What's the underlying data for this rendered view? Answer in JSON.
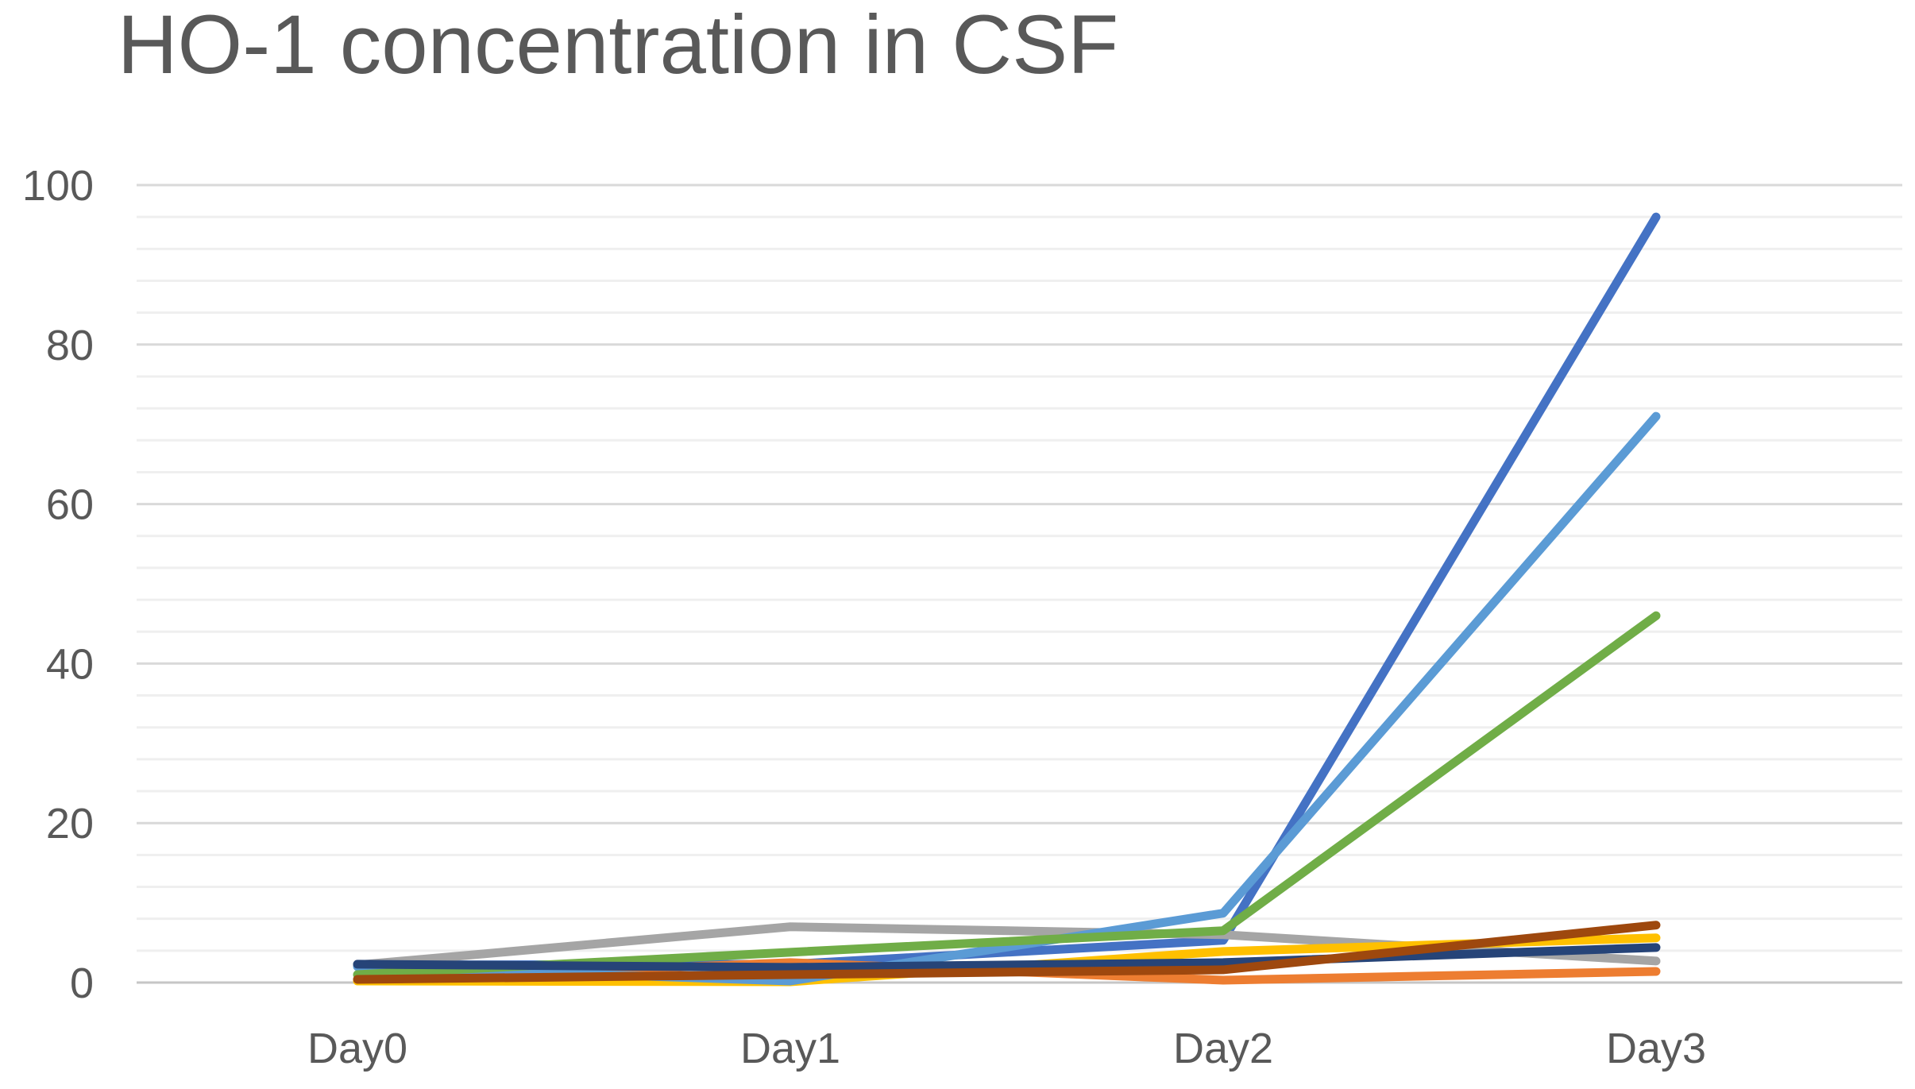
{
  "title": "HO-1 concentration in CSF",
  "chart_data": {
    "type": "line",
    "title": "HO-1 concentration in CSF",
    "categories": [
      "Day0",
      "Day1",
      "Day2",
      "Day3"
    ],
    "series": [
      {
        "name": "blue",
        "color": "#4472C4",
        "values": [
          2.2,
          2.3,
          5.3,
          96
        ]
      },
      {
        "name": "orange",
        "color": "#ED7D31",
        "values": [
          0.3,
          2.5,
          0.3,
          1.4
        ]
      },
      {
        "name": "gray",
        "color": "#A5A5A5",
        "values": [
          2.2,
          7.0,
          6.0,
          2.7
        ]
      },
      {
        "name": "gold",
        "color": "#FFC000",
        "values": [
          0.2,
          0.1,
          3.9,
          5.6
        ]
      },
      {
        "name": "light-blue",
        "color": "#5B9BD5",
        "values": [
          2.0,
          0.2,
          8.7,
          71
        ]
      },
      {
        "name": "green",
        "color": "#70AD47",
        "values": [
          1.0,
          3.8,
          6.5,
          46
        ]
      },
      {
        "name": "dark-blue",
        "color": "#264478",
        "values": [
          2.3,
          1.9,
          2.5,
          4.4
        ]
      },
      {
        "name": "dark-orange",
        "color": "#9E480E",
        "values": [
          0.4,
          1.0,
          1.6,
          7.2
        ]
      }
    ],
    "ylim": [
      0,
      100
    ],
    "yticks": [
      0,
      20,
      40,
      60,
      80,
      100
    ],
    "major_unit": 20,
    "minor_unit": 4,
    "grid": true,
    "legend": "none",
    "xlabel": "",
    "ylabel": "",
    "text_color": "#595959",
    "major_grid_color": "#D9D9D9",
    "minor_grid_color": "#EFEFEF",
    "zero_line_color": "#C6C6C6"
  }
}
